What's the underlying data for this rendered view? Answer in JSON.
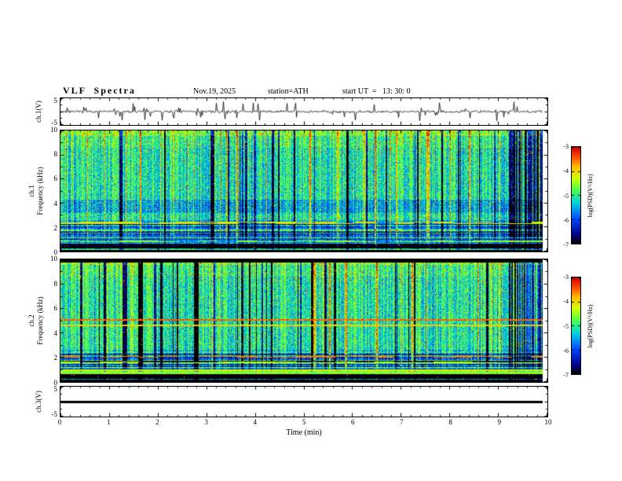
{
  "header": {
    "title": "VLF  Spectra",
    "date": "Nov.19, 2025",
    "station": "station=ATH",
    "start_ut": "start UT  =   13: 30: 0"
  },
  "xaxis": {
    "label": "Time (min)",
    "ticks": [
      0,
      1,
      2,
      3,
      4,
      5,
      6,
      7,
      8,
      9,
      10
    ],
    "range": [
      0,
      10
    ],
    "minor_step": 0.2
  },
  "colormap": {
    "type": "jet",
    "low": "#000000",
    "high": "#cc0000"
  },
  "chart_data": [
    {
      "id": "ch1_waveform",
      "type": "line",
      "ylabel": "ch.1(V)",
      "ylim": [
        -5,
        5
      ],
      "ytick_labels": [
        5,
        -5
      ],
      "x_range": [
        0,
        10
      ],
      "description": "broadband noisy voltage waveform with impulsive spikes around 0 V",
      "texture": {
        "seed": 7
      }
    },
    {
      "id": "ch1_spectrogram",
      "type": "heatmap",
      "ylabel_line1": "ch.1",
      "ylabel_line2": "Frequency (kHz)",
      "ylim": [
        0,
        10
      ],
      "yticks": [
        0,
        2,
        4,
        6,
        8,
        10
      ],
      "x_range": [
        0,
        10
      ],
      "colorbar": {
        "label": "log(PSD)(V²/Hz)",
        "ticks": [
          -3,
          -4,
          -5,
          -6,
          -7
        ],
        "min": -7,
        "max": -3
      },
      "description": "VLF spectrogram: green/cyan background, dense blue vertical sferic streaks, yellow-red speckles, horizontal striping below 2.5 kHz, dark band near 0 kHz",
      "texture": {
        "seed": 101,
        "right_blue_cluster": true,
        "mid_blue_band": true,
        "black_top_rows": 0,
        "lines": [
          {
            "f": 2.35,
            "add": 1.3,
            "dash": true
          },
          {
            "f": 0.8,
            "add": 0.9,
            "dash": true
          }
        ]
      }
    },
    {
      "id": "ch2_spectrogram",
      "type": "heatmap",
      "ylabel_line1": "ch.2",
      "ylabel_line2": "Frequency (kHz)",
      "ylim": [
        0,
        10
      ],
      "yticks": [
        0,
        2,
        4,
        6,
        8,
        10
      ],
      "x_range": [
        0,
        10
      ],
      "colorbar": {
        "label": "log(PSD)(V²/Hz)",
        "ticks": [
          -3,
          -4,
          -5,
          -6,
          -7
        ],
        "min": -7,
        "max": -3
      },
      "description": "VLF spectrogram with black band at 10 kHz edge, bright horizontal lines near 5 kHz and dashed orange lines near 2 kHz, striped low-frequency region",
      "texture": {
        "seed": 202,
        "right_blue_cluster": true,
        "mid_blue_band": false,
        "black_top_rows": 4,
        "lines": [
          {
            "f": 5.05,
            "add": 1.6
          },
          {
            "f": 4.6,
            "add": 1.1
          },
          {
            "f": 2.05,
            "add": 1.9,
            "dash": true
          },
          {
            "f": 1.6,
            "add": 1.0,
            "dash": true
          },
          {
            "f": 0.95,
            "add": 1.2
          },
          {
            "f": 0.7,
            "add": 0.9
          }
        ]
      }
    },
    {
      "id": "ch3_waveform",
      "type": "line",
      "ylabel": "ch.3(V)",
      "ylim": [
        -5,
        5
      ],
      "ytick_labels": [
        5,
        -5
      ],
      "x_range": [
        0,
        10
      ],
      "value": 0,
      "description": "flat thick line at 0 V"
    }
  ]
}
